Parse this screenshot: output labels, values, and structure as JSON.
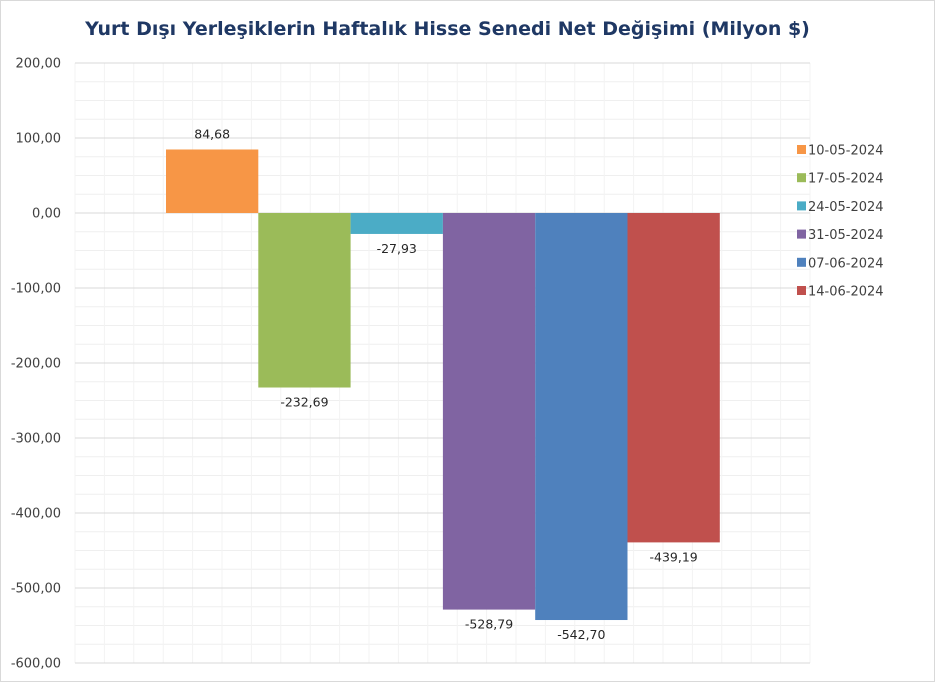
{
  "chart_data": {
    "type": "bar",
    "title": "Yurt Dışı Yerleşiklerin Haftalık Hisse Senedi Net Değişimi (Milyon $)",
    "xlabel": "",
    "ylabel": "",
    "ylim": [
      -600,
      200
    ],
    "ytick_step": 100,
    "yticks": [
      "200,00",
      "100,00",
      "0,00",
      "-100,00",
      "-200,00",
      "-300,00",
      "-400,00",
      "-500,00",
      "-600,00"
    ],
    "grid": true,
    "legend_position": "right",
    "series": [
      {
        "name": "10-05-2024",
        "value": 84.68,
        "label": "84,68",
        "color": "#f79646"
      },
      {
        "name": "17-05-2024",
        "value": -232.69,
        "label": "-232,69",
        "color": "#9bbb59"
      },
      {
        "name": "24-05-2024",
        "value": -27.93,
        "label": "-27,93",
        "color": "#4bacc6"
      },
      {
        "name": "31-05-2024",
        "value": -528.79,
        "label": "-528,79",
        "color": "#8064a2"
      },
      {
        "name": "07-06-2024",
        "value": -542.7,
        "label": "-542,70",
        "color": "#4f81bd"
      },
      {
        "name": "14-06-2024",
        "value": -439.19,
        "label": "-439,19",
        "color": "#c0504d"
      }
    ]
  }
}
